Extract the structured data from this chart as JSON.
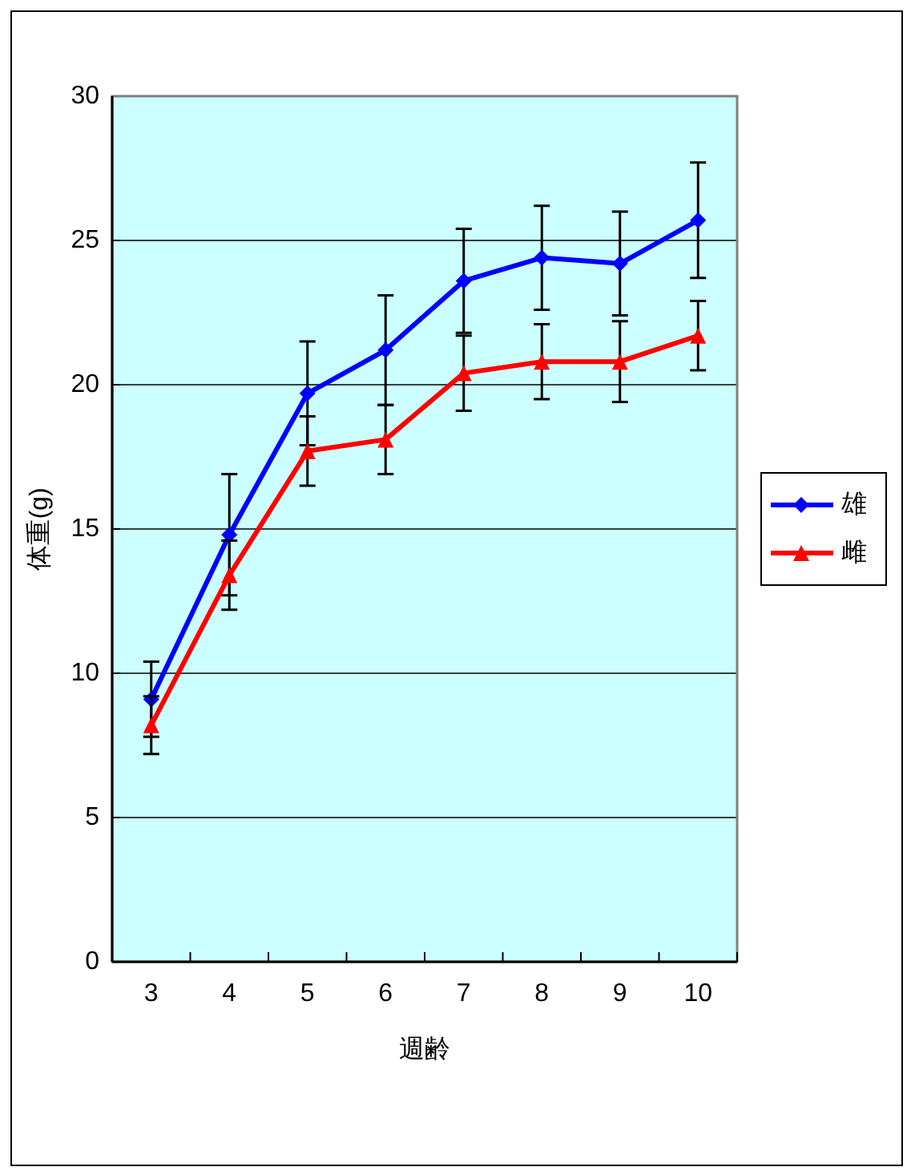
{
  "chart_data": {
    "type": "line",
    "xlabel": "週齢",
    "ylabel": "体重(g)",
    "categories": [
      "3",
      "4",
      "5",
      "6",
      "7",
      "8",
      "9",
      "10"
    ],
    "ylim": [
      0,
      30
    ],
    "yticks": [
      0,
      5,
      10,
      15,
      20,
      25,
      30
    ],
    "grid": "y",
    "legend": "right",
    "series": [
      {
        "name": "雄",
        "color": "#0000ff",
        "marker": "diamond",
        "values": [
          9.1,
          14.8,
          19.7,
          21.2,
          23.6,
          24.4,
          24.2,
          25.7
        ],
        "errors": [
          1.3,
          2.1,
          1.8,
          1.9,
          1.8,
          1.8,
          1.8,
          2.0
        ]
      },
      {
        "name": "雌",
        "color": "#ff0000",
        "marker": "triangle",
        "values": [
          8.2,
          13.4,
          17.7,
          18.1,
          20.4,
          20.8,
          20.8,
          21.7
        ],
        "errors": [
          1.0,
          1.2,
          1.2,
          1.2,
          1.3,
          1.3,
          1.4,
          1.2
        ]
      }
    ]
  }
}
